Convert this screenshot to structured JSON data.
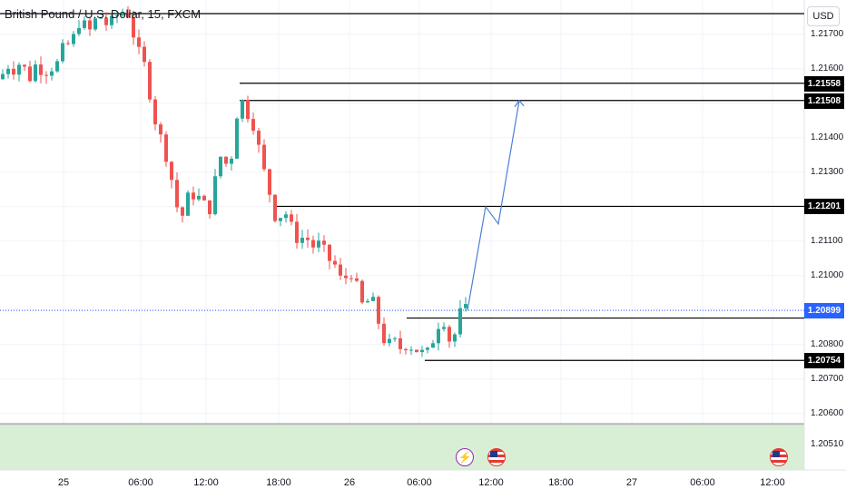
{
  "header": {
    "symbol_title": "British Pound / U.S. Dollar, 15, FXCM",
    "currency_button": "USD"
  },
  "price_axis": {
    "ticks": [
      "1.21700",
      "1.21600",
      "1.21400",
      "1.21300",
      "1.21100",
      "1.21000",
      "1.20800",
      "1.20700",
      "1.20600",
      "1.20510"
    ],
    "markers": [
      {
        "label": "1.21558",
        "style": "black"
      },
      {
        "label": "1.21508",
        "style": "black"
      },
      {
        "label": "1.21201",
        "style": "black"
      },
      {
        "label": "1.20899",
        "style": "blue"
      },
      {
        "label": "1.20754",
        "style": "black"
      }
    ]
  },
  "time_axis": {
    "labels": [
      "25",
      "06:00",
      "12:00",
      "18:00",
      "26",
      "06:00",
      "12:00",
      "18:00",
      "27",
      "06:00",
      "12:00"
    ]
  },
  "levels": {
    "top_line": 1.2176,
    "resistance_high": 1.21558,
    "resistance_low": 1.21508,
    "mid_resistance": 1.21201,
    "support_high": 1.20877,
    "support_low": 1.20754,
    "last_price": 1.20899,
    "lower_zone_top": 1.2057
  },
  "colors": {
    "up": "#26a69a",
    "down": "#ef5350",
    "projection": "#4a7fd4",
    "zone": "#d8efd6",
    "last_price_line": "#2962ff"
  },
  "icons": {
    "event_icons": [
      "lightning-icon",
      "us-flag-icon",
      "us-flag-icon"
    ]
  },
  "chart_data": {
    "type": "candlestick",
    "title": "British Pound / U.S. Dollar, 15, FXCM",
    "ylim": [
      1.2047,
      1.2182
    ],
    "x_ticks": [
      "25",
      "06:00",
      "12:00",
      "18:00",
      "26",
      "06:00",
      "12:00",
      "18:00",
      "27",
      "06:00",
      "12:00"
    ],
    "path_points": [
      [
        0,
        1.2157
      ],
      [
        6,
        1.216
      ],
      [
        12,
        1.2162
      ],
      [
        18,
        1.2158
      ],
      [
        24,
        1.2165
      ],
      [
        30,
        1.2155
      ],
      [
        36,
        1.216
      ],
      [
        42,
        1.2162
      ],
      [
        48,
        1.2158
      ],
      [
        54,
        1.2161
      ],
      [
        60,
        1.216
      ],
      [
        66,
        1.2163
      ],
      [
        72,
        1.2168
      ],
      [
        78,
        1.2166
      ],
      [
        84,
        1.2172
      ],
      [
        90,
        1.2175
      ],
      [
        96,
        1.217
      ],
      [
        102,
        1.2172
      ],
      [
        108,
        1.2176
      ],
      [
        114,
        1.2174
      ],
      [
        120,
        1.2172
      ],
      [
        126,
        1.2175
      ],
      [
        132,
        1.2176
      ],
      [
        138,
        1.2177
      ],
      [
        144,
        1.2175
      ],
      [
        150,
        1.2165
      ],
      [
        156,
        1.2164
      ],
      [
        162,
        1.2158
      ],
      [
        168,
        1.2148
      ],
      [
        174,
        1.2142
      ],
      [
        180,
        1.2138
      ],
      [
        186,
        1.2132
      ],
      [
        192,
        1.2124
      ],
      [
        198,
        1.2116
      ],
      [
        204,
        1.2119
      ],
      [
        210,
        1.2126
      ],
      [
        216,
        1.2121
      ],
      [
        222,
        1.2124
      ],
      [
        228,
        1.2117
      ],
      [
        234,
        1.2122
      ],
      [
        240,
        1.2133
      ],
      [
        246,
        1.2136
      ],
      [
        252,
        1.2129
      ],
      [
        258,
        1.2141
      ],
      [
        264,
        1.2153
      ],
      [
        270,
        1.2148
      ],
      [
        276,
        1.2146
      ],
      [
        282,
        1.2142
      ],
      [
        288,
        1.2132
      ],
      [
        294,
        1.2128
      ],
      [
        300,
        1.212
      ],
      [
        306,
        1.2115
      ],
      [
        312,
        1.212
      ],
      [
        318,
        1.2116
      ],
      [
        324,
        1.2112
      ],
      [
        330,
        1.211
      ],
      [
        336,
        1.2112
      ],
      [
        342,
        1.2109
      ],
      [
        348,
        1.2108
      ],
      [
        354,
        1.211
      ],
      [
        360,
        1.2104
      ],
      [
        366,
        1.2105
      ],
      [
        372,
        1.2101
      ],
      [
        378,
        1.2097
      ],
      [
        384,
        1.2102
      ],
      [
        390,
        1.21
      ],
      [
        396,
        1.2093
      ],
      [
        402,
        1.209
      ],
      [
        408,
        1.2095
      ],
      [
        414,
        1.2089
      ],
      [
        420,
        1.2084
      ],
      [
        426,
        1.2079
      ],
      [
        432,
        1.2081
      ],
      [
        438,
        1.208
      ],
      [
        444,
        1.2078
      ],
      [
        450,
        1.2082
      ],
      [
        456,
        1.2077
      ],
      [
        462,
        1.208
      ],
      [
        468,
        1.2075
      ],
      [
        474,
        1.208
      ],
      [
        480,
        1.2083
      ],
      [
        486,
        1.2089
      ],
      [
        492,
        1.2085
      ],
      [
        498,
        1.2078
      ],
      [
        504,
        1.2088
      ],
      [
        510,
        1.209
      ]
    ],
    "projection_points": [
      [
        515,
        1.20899
      ],
      [
        535,
        1.212
      ],
      [
        549,
        1.2115
      ],
      [
        572,
        1.21508
      ]
    ],
    "candle_count": 86
  }
}
